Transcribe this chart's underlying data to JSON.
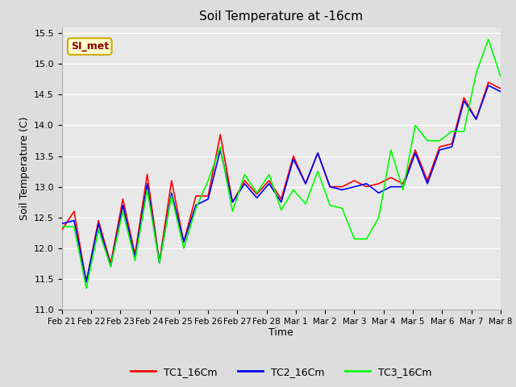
{
  "title": "Soil Temperature at -16cm",
  "xlabel": "Time",
  "ylabel": "Soil Temperature (C)",
  "ylim": [
    11.0,
    15.6
  ],
  "yticks": [
    11.0,
    11.5,
    12.0,
    12.5,
    13.0,
    13.5,
    14.0,
    14.5,
    15.0,
    15.5
  ],
  "bg_color": "#dddddd",
  "plot_bg_color": "#e8e8e8",
  "grid_color": "white",
  "line_colors": [
    "red",
    "blue",
    "lime"
  ],
  "legend_labels": [
    "TC1_16Cm",
    "TC2_16Cm",
    "TC3_16Cm"
  ],
  "annotation_text": "SI_met",
  "annotation_bg": "#ffffcc",
  "annotation_border": "#ccaa00",
  "annotation_fg": "#8b0000",
  "x_labels": [
    "Feb 21",
    "Feb 22",
    "Feb 23",
    "Feb 24",
    "Feb 25",
    "Feb 26",
    "Feb 27",
    "Feb 28",
    "Mar 1",
    "Mar 2",
    "Mar 3",
    "Mar 4",
    "Mar 5",
    "Mar 6",
    "Mar 7",
    "Mar 8"
  ],
  "n_days": 16,
  "TC1_16Cm": [
    12.3,
    12.6,
    11.45,
    12.45,
    11.75,
    12.8,
    11.9,
    13.2,
    11.78,
    13.1,
    12.1,
    12.85,
    12.85,
    13.85,
    12.75,
    13.1,
    12.88,
    13.1,
    12.8,
    13.5,
    13.05,
    13.55,
    13.0,
    13.0,
    13.1,
    13.0,
    13.05,
    13.15,
    13.05,
    13.6,
    13.1,
    13.65,
    13.7,
    14.45,
    14.1,
    14.7,
    14.6
  ],
  "TC2_16Cm": [
    12.4,
    12.45,
    11.45,
    12.4,
    11.7,
    12.7,
    11.85,
    13.05,
    11.76,
    12.9,
    12.1,
    12.7,
    12.8,
    13.6,
    12.75,
    13.05,
    12.82,
    13.05,
    12.75,
    13.45,
    13.05,
    13.55,
    13.0,
    12.95,
    13.0,
    13.05,
    12.9,
    13.0,
    13.0,
    13.55,
    13.05,
    13.6,
    13.65,
    14.4,
    14.1,
    14.65,
    14.55
  ],
  "TC3_16Cm": [
    12.35,
    12.35,
    11.35,
    12.3,
    11.7,
    12.6,
    11.8,
    12.95,
    11.76,
    12.85,
    12.0,
    12.65,
    13.1,
    13.65,
    12.6,
    13.2,
    12.9,
    13.2,
    12.62,
    12.95,
    12.72,
    13.25,
    12.7,
    12.65,
    12.15,
    12.15,
    12.5,
    13.6,
    12.95,
    14.0,
    13.75,
    13.75,
    13.9,
    13.9,
    14.85,
    15.4,
    14.8
  ]
}
